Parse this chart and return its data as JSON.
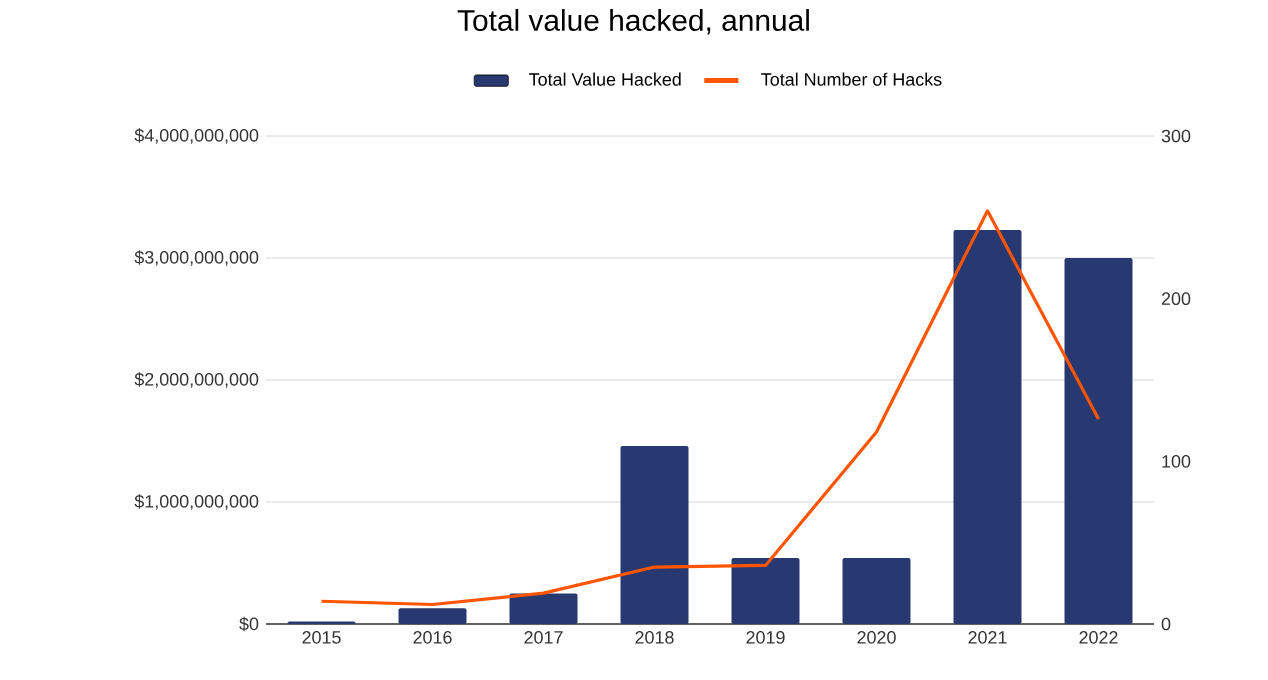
{
  "chart_data": {
    "type": "bar",
    "title": "Total value hacked, annual",
    "categories": [
      "2015",
      "2016",
      "2017",
      "2018",
      "2019",
      "2020",
      "2021",
      "2022"
    ],
    "series": [
      {
        "name": "Total Value Hacked",
        "color": "#283870",
        "values": [
          20000000,
          130000000,
          250000000,
          1460000000,
          540000000,
          540000000,
          3230000000,
          3000000000
        ]
      },
      {
        "name": "Total Number of Hacks",
        "type": "line",
        "axis": "y2",
        "color": "#ff5500",
        "values": [
          14,
          12,
          19,
          35,
          36,
          118,
          254,
          126
        ]
      }
    ],
    "ylim": [
      0,
      4000000000
    ],
    "yticks": [
      {
        "value": 0,
        "label": "$0"
      },
      {
        "value": 1000000000,
        "label": "$1,000,000,000"
      },
      {
        "value": 2000000000,
        "label": "$2,000,000,000"
      },
      {
        "value": 3000000000,
        "label": "$3,000,000,000"
      },
      {
        "value": 4000000000,
        "label": "$4,000,000,000"
      }
    ],
    "y2lim": [
      0,
      300
    ],
    "y2ticks": [
      0,
      100,
      200,
      300
    ],
    "grid": "y",
    "legend": "top"
  }
}
